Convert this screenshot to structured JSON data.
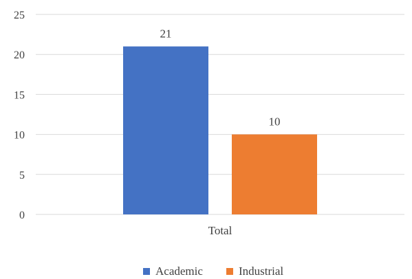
{
  "chart_data": {
    "type": "bar",
    "categories": [
      "Total"
    ],
    "series": [
      {
        "name": "Academic",
        "values": [
          21
        ],
        "color": "#4472C4"
      },
      {
        "name": "Industrial",
        "values": [
          10
        ],
        "color": "#ED7D31"
      }
    ],
    "ylim": [
      0,
      25
    ],
    "yticks": [
      0,
      5,
      10,
      15,
      20,
      25
    ],
    "grid": true,
    "legend_position": "bottom",
    "data_labels": [
      "21",
      "10"
    ]
  }
}
